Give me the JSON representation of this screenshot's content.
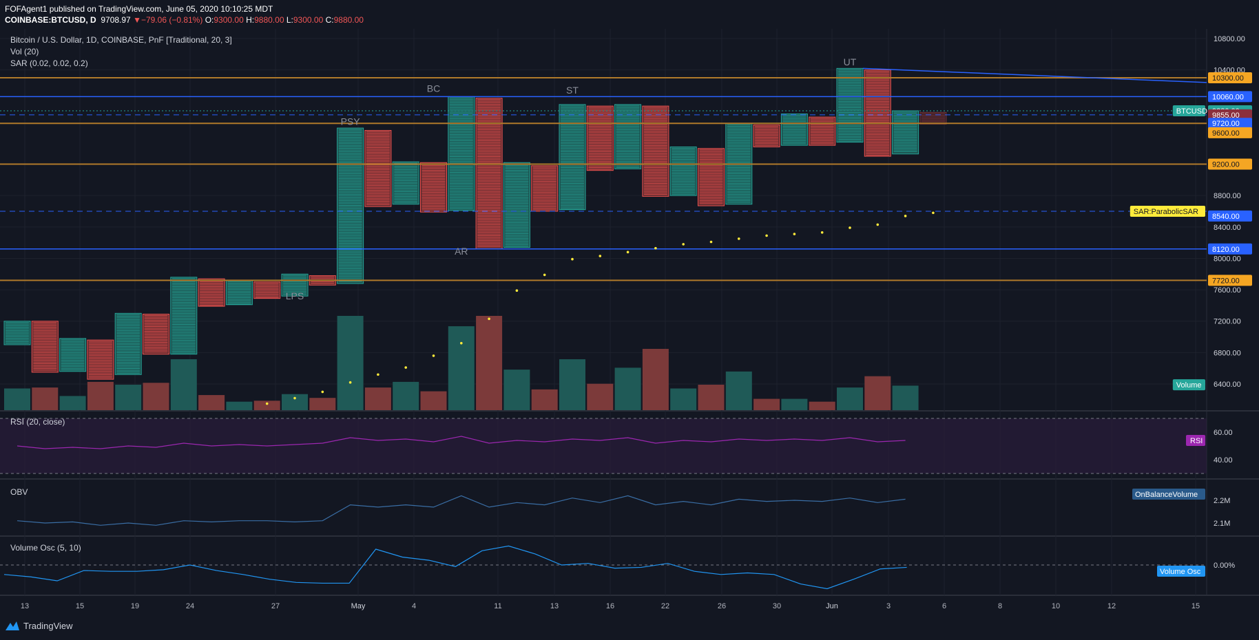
{
  "header": {
    "publisher": "FOFAgent1 published on TradingView.com, June 05, 2020 10:10:25 MDT",
    "symbol": "COINBASE:BTCUSD, D",
    "last": "9708.97",
    "change": "▼−79.06 (−0.81%)",
    "o_label": "O:",
    "o": "9300.00",
    "h_label": "H:",
    "h": "9880.00",
    "l_label": "L:",
    "l": "9300.00",
    "c_label": "C:",
    "c": "9880.00"
  },
  "legend": {
    "title": "Bitcoin / U.S. Dollar, 1D, COINBASE, PnF [Traditional, 20, 3]",
    "vol": "Vol (20)",
    "sar": "SAR (0.02, 0.02, 0.2)"
  },
  "panes": {
    "rsi": "RSI (20, close)",
    "obv": "OBV",
    "vosc": "Volume Osc (5, 10)"
  },
  "footer": {
    "brand": "TradingView"
  },
  "colors": {
    "background": "#131722",
    "up": "#26a69a",
    "down": "#ef5350",
    "orange_line": "#f0a020",
    "blue_line": "#2962ff",
    "rsi": "#9c27b0",
    "obv": "#3a6ea5",
    "vosc": "#2196f3",
    "sar_dot": "#ffeb3b"
  },
  "chart_data": [
    {
      "type": "point-and-figure",
      "box_size": 20,
      "reversal": 3,
      "y_axis_ticks": [
        "10800.00",
        "10400.00",
        "8800.00",
        "8400.00",
        "8000.00",
        "7600.00",
        "7200.00",
        "6800.00",
        "6400.00"
      ],
      "x_axis_ticks": [
        "13",
        "15",
        "19",
        "24",
        "27",
        "May",
        "4",
        "11",
        "13",
        "16",
        "22",
        "26",
        "30",
        "Jun",
        "3",
        "6",
        "8",
        "10",
        "12",
        "15"
      ],
      "columns": [
        {
          "dir": "up",
          "low": 6900,
          "high": 7200
        },
        {
          "dir": "down",
          "low": 6550,
          "high": 7200
        },
        {
          "dir": "up",
          "low": 6560,
          "high": 6980
        },
        {
          "dir": "down",
          "low": 6460,
          "high": 6960
        },
        {
          "dir": "up",
          "low": 6520,
          "high": 7300
        },
        {
          "dir": "down",
          "low": 6780,
          "high": 7290
        },
        {
          "dir": "up",
          "low": 6780,
          "high": 7760
        },
        {
          "dir": "down",
          "low": 7390,
          "high": 7740
        },
        {
          "dir": "up",
          "low": 7410,
          "high": 7720
        },
        {
          "dir": "down",
          "low": 7490,
          "high": 7700
        },
        {
          "dir": "up",
          "low": 7520,
          "high": 7800
        },
        {
          "dir": "down",
          "low": 7660,
          "high": 7780
        },
        {
          "dir": "up",
          "low": 7680,
          "high": 9660
        },
        {
          "dir": "down",
          "low": 8660,
          "high": 9630
        },
        {
          "dir": "up",
          "low": 8690,
          "high": 9230
        },
        {
          "dir": "down",
          "low": 8590,
          "high": 9220
        },
        {
          "dir": "up",
          "low": 8610,
          "high": 10060
        },
        {
          "dir": "down",
          "low": 8120,
          "high": 10040
        },
        {
          "dir": "up",
          "low": 8140,
          "high": 9220
        },
        {
          "dir": "down",
          "low": 8600,
          "high": 9180
        },
        {
          "dir": "up",
          "low": 8620,
          "high": 9960
        },
        {
          "dir": "down",
          "low": 9120,
          "high": 9940
        },
        {
          "dir": "up",
          "low": 9140,
          "high": 9960
        },
        {
          "dir": "down",
          "low": 8790,
          "high": 9940
        },
        {
          "dir": "up",
          "low": 8800,
          "high": 9420
        },
        {
          "dir": "down",
          "low": 8670,
          "high": 9400
        },
        {
          "dir": "up",
          "low": 8690,
          "high": 9720
        },
        {
          "dir": "down",
          "low": 9420,
          "high": 9700
        },
        {
          "dir": "up",
          "low": 9440,
          "high": 9840
        },
        {
          "dir": "down",
          "low": 9440,
          "high": 9800
        },
        {
          "dir": "up",
          "low": 9480,
          "high": 10420
        },
        {
          "dir": "down",
          "low": 9300,
          "high": 10400
        },
        {
          "dir": "up",
          "low": 9330,
          "high": 9880
        },
        {
          "dir": "down",
          "low": 9710,
          "high": 9860,
          "projected": true
        }
      ],
      "volume": [
        {
          "dir": "up",
          "v": 0.23
        },
        {
          "dir": "down",
          "v": 0.24
        },
        {
          "dir": "up",
          "v": 0.15
        },
        {
          "dir": "down",
          "v": 0.3
        },
        {
          "dir": "up",
          "v": 0.27
        },
        {
          "dir": "down",
          "v": 0.29
        },
        {
          "dir": "up",
          "v": 0.54
        },
        {
          "dir": "down",
          "v": 0.16
        },
        {
          "dir": "up",
          "v": 0.09
        },
        {
          "dir": "down",
          "v": 0.1
        },
        {
          "dir": "up",
          "v": 0.17
        },
        {
          "dir": "down",
          "v": 0.13
        },
        {
          "dir": "up",
          "v": 1.0
        },
        {
          "dir": "down",
          "v": 0.24
        },
        {
          "dir": "up",
          "v": 0.3
        },
        {
          "dir": "down",
          "v": 0.2
        },
        {
          "dir": "up",
          "v": 0.89
        },
        {
          "dir": "down",
          "v": 1.0
        },
        {
          "dir": "up",
          "v": 0.43
        },
        {
          "dir": "down",
          "v": 0.22
        },
        {
          "dir": "up",
          "v": 0.54
        },
        {
          "dir": "down",
          "v": 0.28
        },
        {
          "dir": "up",
          "v": 0.45
        },
        {
          "dir": "down",
          "v": 0.65
        },
        {
          "dir": "up",
          "v": 0.23
        },
        {
          "dir": "down",
          "v": 0.27
        },
        {
          "dir": "up",
          "v": 0.41
        },
        {
          "dir": "down",
          "v": 0.12
        },
        {
          "dir": "up",
          "v": 0.12
        },
        {
          "dir": "down",
          "v": 0.09
        },
        {
          "dir": "up",
          "v": 0.24
        },
        {
          "dir": "down",
          "v": 0.36
        },
        {
          "dir": "up",
          "v": 0.26
        }
      ],
      "sar": [
        null,
        null,
        null,
        null,
        null,
        null,
        null,
        null,
        null,
        6150,
        6220,
        6300,
        6420,
        6520,
        6610,
        6760,
        6920,
        7230,
        7590,
        7790,
        7990,
        8030,
        8080,
        8130,
        8180,
        8210,
        8250,
        8290,
        8310,
        8330,
        8390,
        8430,
        8540,
        8580
      ],
      "annotations": [
        {
          "text": "PSY",
          "col": 12,
          "price": 9700
        },
        {
          "text": "LPS",
          "col": 10,
          "price": 7480
        },
        {
          "text": "BC",
          "col": 15,
          "price": 10120
        },
        {
          "text": "AR",
          "col": 16,
          "price": 8050
        },
        {
          "text": "ST",
          "col": 20,
          "price": 10100
        },
        {
          "text": "UT",
          "col": 30,
          "price": 10460
        }
      ],
      "horizontal_levels": [
        {
          "price": "10300.00",
          "kind": "orange"
        },
        {
          "price": "10060.00",
          "kind": "blue"
        },
        {
          "price": "9720.00",
          "kind": "orange"
        },
        {
          "price": "9200.00",
          "kind": "orange"
        },
        {
          "price": "8120.00",
          "kind": "blue"
        },
        {
          "price": "7720.00",
          "kind": "orange"
        }
      ],
      "axis_labels": [
        {
          "text": "10300.00",
          "price": 10300,
          "bg": "#f5a623",
          "fg": "#131722"
        },
        {
          "text": "10060.00",
          "price": 10060,
          "bg": "#2962ff",
          "fg": "#ffffff"
        },
        {
          "text": "9880.00",
          "price": 9880,
          "bg": "#26a69a",
          "fg": "#ffffff"
        },
        {
          "text": "9855.00",
          "price": 9828,
          "bg": "#8b2f3c",
          "fg": "#ffffff"
        },
        {
          "text": "9720.00",
          "price": 9720,
          "bg": "#2962ff",
          "fg": "#ffffff"
        },
        {
          "text": "9600.00",
          "price": 9600,
          "bg": "#f5a623",
          "fg": "#131722"
        },
        {
          "text": "9200.00",
          "price": 9200,
          "bg": "#f5a623",
          "fg": "#131722"
        },
        {
          "text": "8540.00",
          "price": 8540,
          "bg": "#2962ff",
          "fg": "#ffffff"
        },
        {
          "text": "8120.00",
          "price": 8120,
          "bg": "#2962ff",
          "fg": "#ffffff"
        },
        {
          "text": "7720.00",
          "price": 7720,
          "bg": "#f5a623",
          "fg": "#131722"
        }
      ],
      "side_tags": [
        {
          "text": "BTCUSD",
          "bg": "#26a69a",
          "price": 9880
        },
        {
          "text": "SAR:ParabolicSAR",
          "bg": "#ffeb3b",
          "price": 8600
        },
        {
          "text": "Volume",
          "bg": "#26a69a",
          "price": 6390
        }
      ],
      "trendline": {
        "from_col": 30,
        "from_price": 10420,
        "to_col": 43,
        "to_price": 10240
      }
    },
    {
      "type": "line",
      "name": "RSI",
      "tag": "RSI",
      "y_ticks": [
        "60.00",
        "40.00"
      ],
      "bands": [
        70,
        30
      ],
      "values": [
        50,
        48,
        49,
        48,
        50,
        49,
        52,
        50,
        51,
        50,
        51,
        52,
        56,
        54,
        55,
        53,
        57,
        52,
        54,
        53,
        55,
        54,
        56,
        52,
        54,
        53,
        55,
        54,
        55,
        54,
        56,
        53,
        54
      ]
    },
    {
      "type": "line",
      "name": "OBV",
      "tag": "OnBalanceVolume",
      "y_ticks": [
        "2.2M",
        "2.1M"
      ],
      "values": [
        2.11,
        2.1,
        2.105,
        2.09,
        2.1,
        2.09,
        2.11,
        2.105,
        2.11,
        2.11,
        2.105,
        2.11,
        2.18,
        2.17,
        2.18,
        2.17,
        2.22,
        2.17,
        2.19,
        2.18,
        2.21,
        2.19,
        2.22,
        2.18,
        2.195,
        2.18,
        2.205,
        2.195,
        2.2,
        2.195,
        2.21,
        2.19,
        2.205
      ]
    },
    {
      "type": "line",
      "name": "Volume Osc",
      "tag": "Volume Osc",
      "y_ticks": [
        "0.00%"
      ],
      "values": [
        -12,
        -15,
        -20,
        -7,
        -8,
        -8,
        -6,
        0,
        -7,
        -12,
        -18,
        -22,
        -23,
        -23,
        20,
        10,
        6,
        -2,
        18,
        24,
        14,
        0,
        2,
        -4,
        -3,
        2,
        -8,
        -12,
        -10,
        -12,
        -24,
        -30,
        -18,
        -5,
        -3
      ]
    }
  ]
}
